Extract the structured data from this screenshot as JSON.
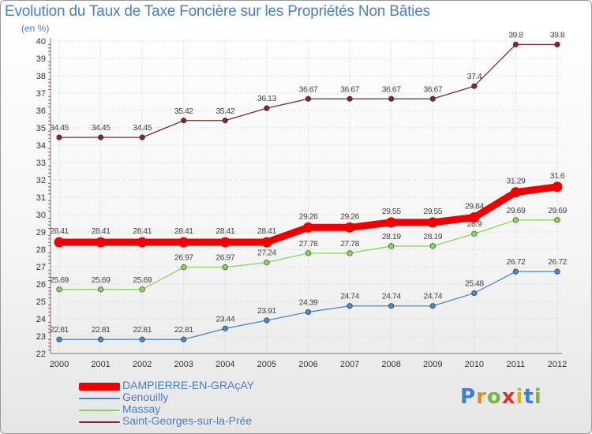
{
  "title": "Evolution du Taux de Taxe Foncière sur les Propriétés Non Bâties",
  "subtitle": "(en %)",
  "logo": "Proxiti",
  "chart_data": {
    "type": "line",
    "title": "Evolution du Taux de Taxe Foncière sur les Propriétés Non Bâties",
    "ylabel": "(en %)",
    "xlabel": "",
    "ylim": [
      22,
      40
    ],
    "yticks": [
      22,
      23,
      24,
      25,
      26,
      27,
      28,
      29,
      30,
      31,
      32,
      33,
      34,
      35,
      36,
      37,
      38,
      39,
      40
    ],
    "categories": [
      "2000",
      "2001",
      "2002",
      "2003",
      "2004",
      "2005",
      "2006",
      "2007",
      "2008",
      "2009",
      "2010",
      "2011",
      "2012"
    ],
    "legend_position": "bottom-left",
    "series": [
      {
        "name": "DAMPIERRE-EN-GRAçAY",
        "color": "#ee0000",
        "thick": true,
        "values": [
          28.41,
          28.41,
          28.41,
          28.41,
          28.41,
          28.41,
          29.26,
          29.26,
          29.55,
          29.55,
          29.84,
          31.29,
          31.6
        ],
        "labels": [
          "28.41",
          "28.41",
          "28.41",
          "28.41",
          "28.41",
          "28.41",
          "29.26",
          "29.26",
          "29.55",
          "29.55",
          "29.84",
          "31.29",
          "31.6"
        ]
      },
      {
        "name": "Genouilly",
        "color": "#4a86c8",
        "thick": false,
        "values": [
          22.81,
          22.81,
          22.81,
          22.81,
          23.44,
          23.91,
          24.39,
          24.74,
          24.74,
          24.74,
          25.48,
          26.72,
          26.72
        ],
        "labels": [
          "22.81",
          "22.81",
          "22.81",
          "22.81",
          "23.44",
          "23.91",
          "24.39",
          "24.74",
          "24.74",
          "24.74",
          "25.48",
          "26.72",
          "26.72"
        ]
      },
      {
        "name": "Massay",
        "color": "#88d45c",
        "thick": false,
        "values": [
          25.69,
          25.69,
          25.69,
          26.97,
          26.97,
          27.24,
          27.78,
          27.78,
          28.19,
          28.19,
          28.9,
          29.69,
          29.69
        ],
        "labels": [
          "25.69",
          "25.69",
          "25.69",
          "26.97",
          "26.97",
          "27.24",
          "27.78",
          "27.78",
          "28.19",
          "28.19",
          "28.9",
          "29.69",
          "29.69"
        ]
      },
      {
        "name": "Saint-Georges-sur-la-Prée",
        "color": "#7a2a2a",
        "thick": false,
        "values": [
          34.45,
          34.45,
          34.45,
          35.42,
          35.42,
          36.13,
          36.67,
          36.67,
          36.67,
          36.67,
          37.4,
          39.8,
          39.8
        ],
        "labels": [
          "34.45",
          "34.45",
          "34.45",
          "35.42",
          "35.42",
          "36.13",
          "36.67",
          "36.67",
          "36.67",
          "36.67",
          "37.4",
          "39.8",
          "39.8"
        ]
      }
    ]
  }
}
